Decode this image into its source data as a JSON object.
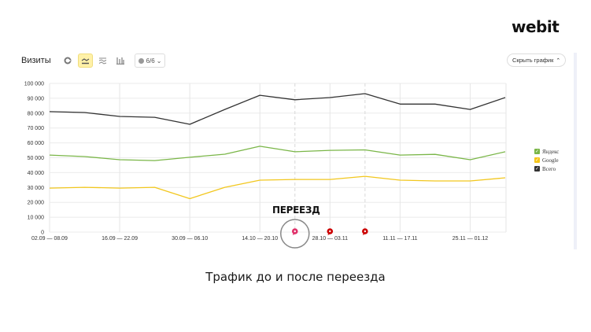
{
  "brand": {
    "logo": "webit"
  },
  "toolbar": {
    "title": "Визиты",
    "buttons": [
      {
        "name": "pie-chart-icon",
        "active": false
      },
      {
        "name": "line-chart-icon",
        "active": true
      },
      {
        "name": "area-chart-icon",
        "active": false
      },
      {
        "name": "bar-chart-icon",
        "active": false
      }
    ],
    "notes_select": "6/6",
    "hide_chart_label": "Скрыть график"
  },
  "annotation": {
    "label": "ПЕРЕЕЗД"
  },
  "caption": "Трафик до и после переезда",
  "legend": [
    {
      "label": "Яндекс",
      "color": "#7ab648",
      "checked": true
    },
    {
      "label": "Google",
      "color": "#f5c518",
      "checked": true
    },
    {
      "label": "Всего",
      "color": "#333333",
      "checked": true
    }
  ],
  "colors": {
    "yandex": "#7ab648",
    "google": "#f2c71e",
    "total": "#333333",
    "marker_red": "#cc0000",
    "marker_pink": "#e0306a"
  },
  "chart_data": {
    "type": "line",
    "title": "Визиты",
    "xlabel": "",
    "ylabel": "",
    "ylim": [
      0,
      100000
    ],
    "yticks": [
      "0",
      "10 000",
      "20 000",
      "30 000",
      "40 000",
      "50 000",
      "60 000",
      "70 000",
      "80 000",
      "90 000",
      "100 000"
    ],
    "xtick_labels": [
      "02.09 — 08.09",
      "16.09 — 22.09",
      "30.09 — 06.10",
      "14.10 — 20.10",
      "28.10 — 03.11",
      "11.11 — 17.11",
      "25.11 — 01.12"
    ],
    "x": [
      "02.09",
      "09.09",
      "16.09",
      "23.09",
      "30.09",
      "07.10",
      "14.10",
      "21.10",
      "28.10",
      "04.11",
      "11.11",
      "18.11",
      "25.11",
      "02.12"
    ],
    "series": [
      {
        "name": "Всего",
        "color": "#333333",
        "values": [
          81000,
          80400,
          77800,
          77200,
          72500,
          82500,
          92000,
          89000,
          90500,
          93100,
          86100,
          86100,
          82500,
          90500
        ]
      },
      {
        "name": "Яндекс",
        "color": "#7ab648",
        "values": [
          51800,
          50800,
          48700,
          48100,
          50300,
          52400,
          57700,
          54000,
          55000,
          55300,
          51800,
          52300,
          48700,
          54000
        ]
      },
      {
        "name": "Google",
        "color": "#f2c71e",
        "values": [
          29600,
          30100,
          29600,
          30100,
          22500,
          30100,
          34900,
          35400,
          35400,
          37500,
          34900,
          34400,
          34400,
          36500
        ]
      }
    ],
    "grid": true,
    "legend_position": "right",
    "annotations": [
      {
        "label": "ПЕРЕЕЗД",
        "x_index": 7,
        "marker": "pink",
        "circled": true
      },
      {
        "x_index": 8,
        "marker": "red"
      },
      {
        "x_index": 9,
        "marker": "red"
      }
    ]
  }
}
